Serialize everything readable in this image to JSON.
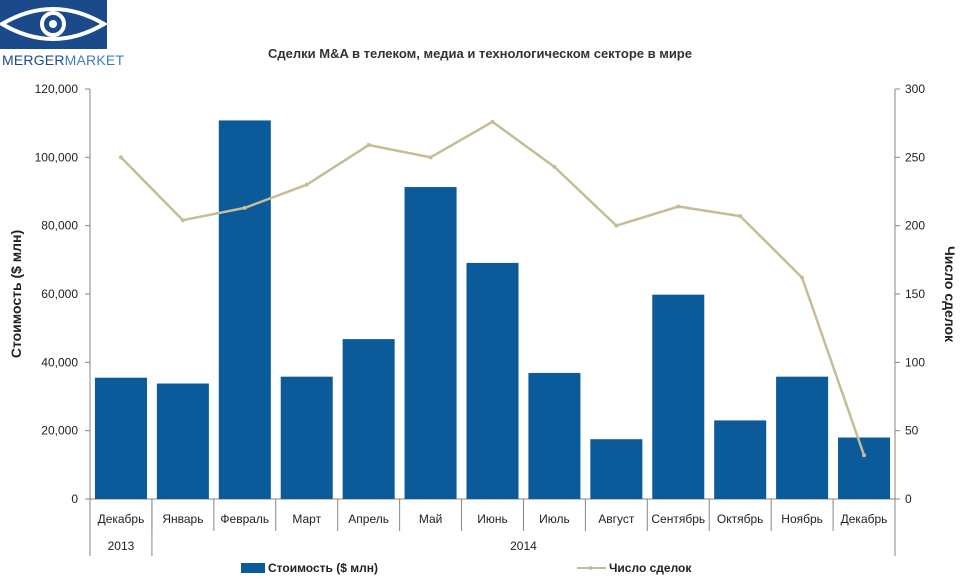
{
  "logo": {
    "text_main": "MERGER",
    "text_accent": "MARKET",
    "colors": {
      "box": "#1b4a8a",
      "text_main": "#1b4a8a",
      "text_accent": "#3e7bc2"
    }
  },
  "chart_data": {
    "type": "bar",
    "title": "Сделки M&A в телеком, медиа и технологическом секторе в мире",
    "categories": [
      "Декабрь",
      "Январь",
      "Февраль",
      "Март",
      "Апрель",
      "Май",
      "Июнь",
      "Июль",
      "Август",
      "Сентябрь",
      "Октябрь",
      "Ноябрь",
      "Декабрь"
    ],
    "year_groups": [
      {
        "label": "2013",
        "span": 1
      },
      {
        "label": "2014",
        "span": 12
      }
    ],
    "series": [
      {
        "name": "Стоимость ($ млн)",
        "type": "bar",
        "axis": "left",
        "color": "#0b5a9a",
        "values": [
          35500,
          33800,
          110800,
          35800,
          46800,
          91300,
          69100,
          36900,
          17500,
          59800,
          23000,
          35800,
          18000
        ]
      },
      {
        "name": "Число сделок",
        "type": "line",
        "axis": "right",
        "color": "#c4bd97",
        "values": [
          250,
          204,
          213,
          230,
          259,
          250,
          276,
          243,
          200,
          214,
          207,
          162,
          32
        ]
      }
    ],
    "ylabel": "Стоимость  ($ млн)",
    "y2label": "Число сделок",
    "ylim": [
      0,
      120000
    ],
    "y2lim": [
      0,
      300
    ],
    "yticks": [
      "0",
      "20,000",
      "40,000",
      "60,000",
      "80,000",
      "100,000",
      "120,000"
    ],
    "y2ticks": [
      "0",
      "50",
      "100",
      "150",
      "200",
      "250",
      "300"
    ],
    "grid": false,
    "legend": "bottom"
  }
}
